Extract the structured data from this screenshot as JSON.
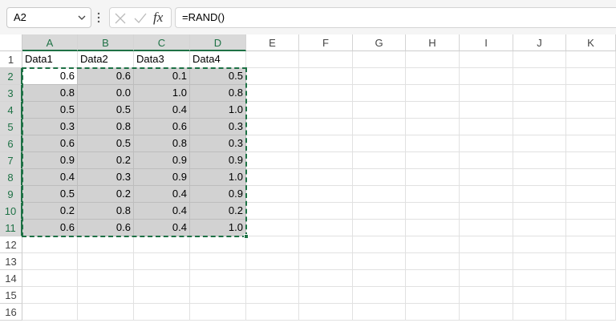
{
  "name_box": "A2",
  "formula_bar": {
    "fx": "fx",
    "formula": "=RAND()"
  },
  "columns": [
    "A",
    "B",
    "C",
    "D",
    "E",
    "F",
    "G",
    "H",
    "I",
    "J",
    "K"
  ],
  "rows": [
    1,
    2,
    3,
    4,
    5,
    6,
    7,
    8,
    9,
    10,
    11,
    12,
    13,
    14,
    15,
    16
  ],
  "table": {
    "header": [
      "Data1",
      "Data2",
      "Data3",
      "Data4"
    ],
    "rows": [
      [
        "0.6",
        "0.6",
        "0.1",
        "0.5"
      ],
      [
        "0.8",
        "0.0",
        "1.0",
        "0.8"
      ],
      [
        "0.5",
        "0.5",
        "0.4",
        "1.0"
      ],
      [
        "0.3",
        "0.8",
        "0.6",
        "0.3"
      ],
      [
        "0.6",
        "0.5",
        "0.8",
        "0.3"
      ],
      [
        "0.9",
        "0.2",
        "0.9",
        "0.9"
      ],
      [
        "0.4",
        "0.3",
        "0.9",
        "1.0"
      ],
      [
        "0.5",
        "0.2",
        "0.4",
        "0.9"
      ],
      [
        "0.2",
        "0.8",
        "0.4",
        "0.2"
      ],
      [
        "0.6",
        "0.6",
        "0.4",
        "1.0"
      ]
    ]
  }
}
